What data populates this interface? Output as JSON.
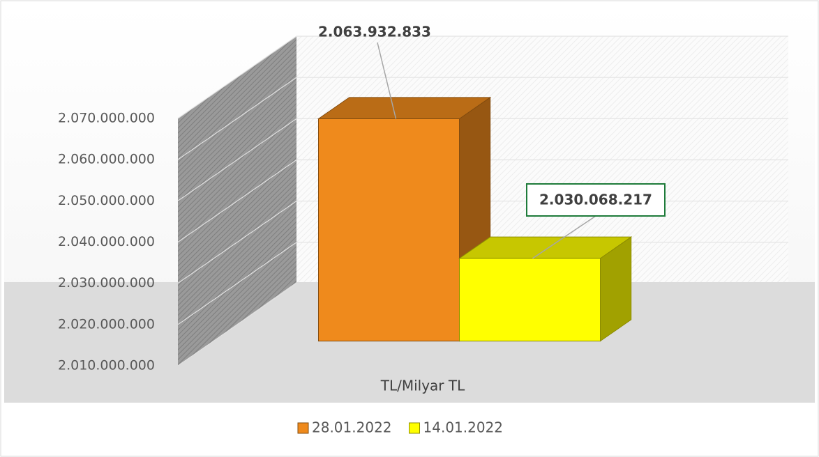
{
  "chart_data": {
    "type": "bar",
    "categories": [
      "TL/Milyar TL"
    ],
    "series": [
      {
        "name": "28.01.2022",
        "color": "#ef8a1c",
        "values": [
          2063932833
        ],
        "value_labels": [
          "2.063.932.833"
        ]
      },
      {
        "name": "14.01.2022",
        "color": "#ffff00",
        "values": [
          2030068217
        ],
        "value_labels": [
          "2.030.068.217"
        ]
      }
    ],
    "ylim": [
      2010000000,
      2070000000
    ],
    "yticks": [
      {
        "value": 2010000000,
        "label": "2.010.000.000"
      },
      {
        "value": 2020000000,
        "label": "2.020.000.000"
      },
      {
        "value": 2030000000,
        "label": "2.030.000.000"
      },
      {
        "value": 2040000000,
        "label": "2.040.000.000"
      },
      {
        "value": 2050000000,
        "label": "2.050.000.000"
      },
      {
        "value": 2060000000,
        "label": "2.060.000.000"
      },
      {
        "value": 2070000000,
        "label": "2.070.000.000"
      }
    ],
    "grid": true,
    "legend": "bottom"
  }
}
